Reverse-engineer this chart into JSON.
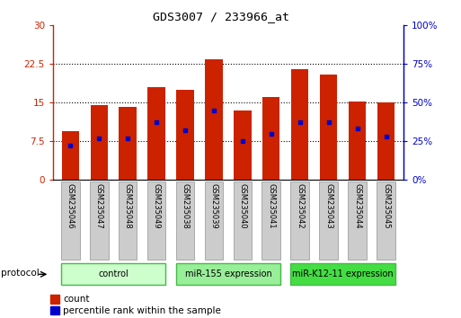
{
  "title": "GDS3007 / 233966_at",
  "samples": [
    "GSM235046",
    "GSM235047",
    "GSM235048",
    "GSM235049",
    "GSM235038",
    "GSM235039",
    "GSM235040",
    "GSM235041",
    "GSM235042",
    "GSM235043",
    "GSM235044",
    "GSM235045"
  ],
  "count_values": [
    9.5,
    14.5,
    14.2,
    18.0,
    17.5,
    23.5,
    13.5,
    16.0,
    21.5,
    20.5,
    15.2,
    15.0
  ],
  "percentile_values": [
    22,
    27,
    27,
    37,
    32,
    45,
    25,
    30,
    37,
    37,
    33,
    28
  ],
  "bar_color": "#cc2200",
  "marker_color": "#0000cc",
  "ylim_left": [
    0,
    30
  ],
  "ylim_right": [
    0,
    100
  ],
  "yticks_left": [
    0,
    7.5,
    15,
    22.5,
    30
  ],
  "yticks_right": [
    0,
    25,
    50,
    75,
    100
  ],
  "ytick_labels_left": [
    "0",
    "7.5",
    "15",
    "22.5",
    "30"
  ],
  "ytick_labels_right": [
    "0%",
    "25%",
    "50%",
    "75%",
    "100%"
  ],
  "groups": [
    {
      "label": "control",
      "start": 0,
      "end": 3,
      "color": "#ccffcc",
      "border_color": "#44bb44"
    },
    {
      "label": "miR-155 expression",
      "start": 4,
      "end": 7,
      "color": "#99ee99",
      "border_color": "#44bb44"
    },
    {
      "label": "miR-K12-11 expression",
      "start": 8,
      "end": 11,
      "color": "#44dd44",
      "border_color": "#44bb44"
    }
  ],
  "protocol_label": "protocol",
  "legend_count_label": "count",
  "legend_percentile_label": "percentile rank within the sample",
  "left_axis_color": "#cc2200",
  "right_axis_color": "#0000cc",
  "bar_width": 0.6,
  "background_color": "#ffffff"
}
